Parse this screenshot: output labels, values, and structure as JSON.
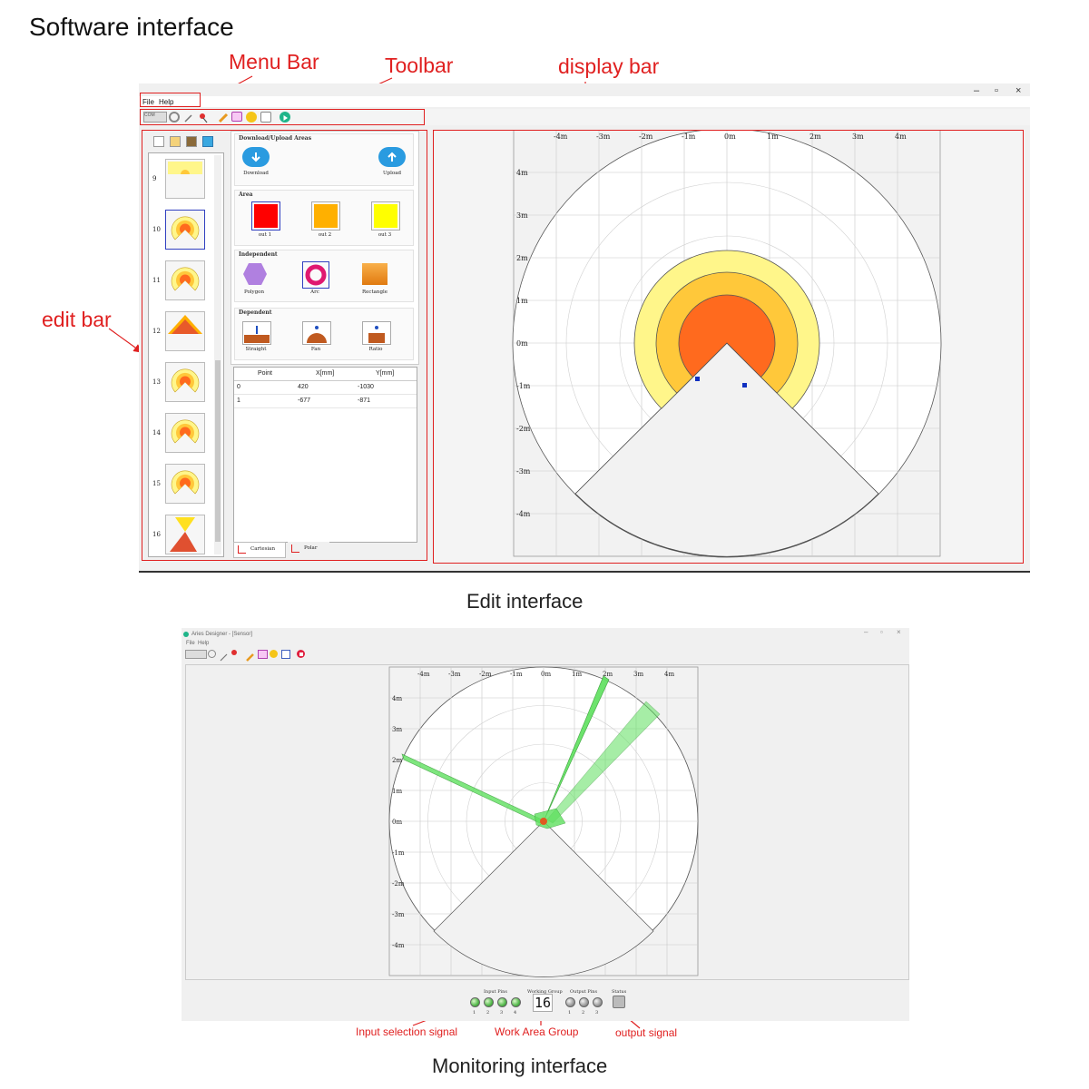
{
  "page": {
    "heading": "Software interface",
    "edit_caption": "Edit interface",
    "monitor_caption": "Monitoring interface"
  },
  "annotations": {
    "menu_bar": "Menu Bar",
    "toolbar": "Toolbar",
    "display_bar": "display bar",
    "edit_bar": "edit bar",
    "input_selection_signal": "Input selection signal",
    "work_area_group": "Work Area Group",
    "output_signal": "output signal",
    "color": "#e02020"
  },
  "edit_window": {
    "controls": {
      "minimize": "–",
      "restore": "▫",
      "close": "×"
    },
    "menu": [
      "File",
      "Help"
    ],
    "toolbar": {
      "combo": "COM",
      "icons": [
        "connect-icon",
        "magic-wand-icon",
        "pin-icon",
        "pencil-icon",
        "monitor-icon",
        "gear-icon",
        "table-icon",
        "play-icon"
      ]
    },
    "thumbnails": {
      "icons": [
        "new-icon",
        "image-icon",
        "copy-icon",
        "delete-icon"
      ],
      "items": [
        {
          "num": "9"
        },
        {
          "num": "10",
          "selected": true
        },
        {
          "num": "11"
        },
        {
          "num": "12"
        },
        {
          "num": "13"
        },
        {
          "num": "14"
        },
        {
          "num": "15"
        },
        {
          "num": "16"
        }
      ]
    },
    "palette": {
      "download_upload": {
        "title": "Download/Upload Areas",
        "download": "Download",
        "upload": "Upload"
      },
      "area": {
        "title": "Area",
        "items": [
          {
            "label": "out 1",
            "color": "#ff0000"
          },
          {
            "label": "out 2",
            "color": "#ffb000"
          },
          {
            "label": "out 3",
            "color": "#ffff00"
          }
        ]
      },
      "independent": {
        "title": "Independent",
        "items": [
          "Polygon",
          "Arc",
          "Rectangle"
        ]
      },
      "dependent": {
        "title": "Dependent",
        "items": [
          "Straight",
          "Fan",
          "Ratio"
        ]
      }
    },
    "points_table": {
      "headers": [
        "Point",
        "X[mm]",
        "Y[mm]"
      ],
      "rows": [
        [
          "0",
          "420",
          "-1030"
        ],
        [
          "1",
          "-677",
          "-871"
        ]
      ]
    },
    "tabs": [
      "Cartesian",
      "Polar"
    ],
    "display": {
      "x_ticks": [
        "-4m",
        "-3m",
        "-2m",
        "-1m",
        "0m",
        "1m",
        "2m",
        "3m",
        "4m"
      ],
      "y_ticks": [
        "4m",
        "3m",
        "2m",
        "1m",
        "0m",
        "-1m",
        "-2m",
        "-3m",
        "-4m"
      ],
      "zone_colors": {
        "out3": "#fff68a",
        "out2": "#ffc83a",
        "out1": "#ff6a1e"
      }
    }
  },
  "monitor_window": {
    "title": "Aries Designer - [Sensor]",
    "menu": [
      "File",
      "Help"
    ],
    "controls": {
      "minimize": "–",
      "restore": "▫",
      "close": "×"
    },
    "display": {
      "x_ticks": [
        "-4m",
        "-3m",
        "-2m",
        "-1m",
        "0m",
        "1m",
        "2m",
        "3m",
        "4m"
      ],
      "y_ticks": [
        "4m",
        "3m",
        "2m",
        "1m",
        "0m",
        "-1m",
        "-2m",
        "-3m",
        "-4m"
      ],
      "scan_color": "#5ee05e"
    },
    "status": {
      "input_pins": {
        "label": "Input Pins",
        "pins": [
          "1",
          "2",
          "3",
          "4"
        ]
      },
      "working_group": {
        "label": "Working Group",
        "value": "16"
      },
      "output_pins": {
        "label": "Output Pins",
        "pins": [
          "1",
          "2",
          "3"
        ]
      },
      "status_label": "Status"
    }
  }
}
